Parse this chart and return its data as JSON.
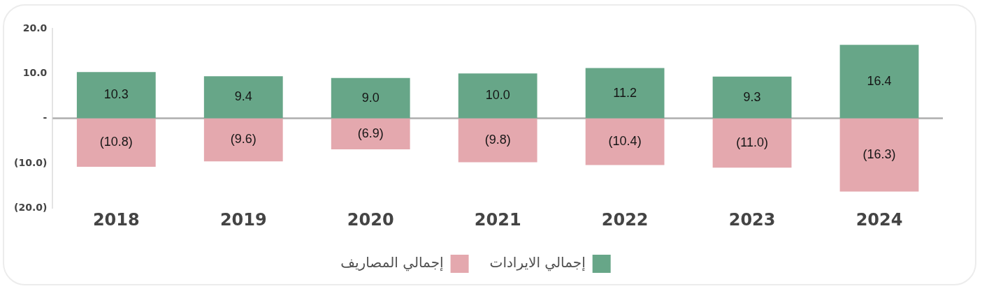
{
  "chart_data": {
    "type": "bar",
    "stacked": true,
    "categories": [
      "2018",
      "2019",
      "2020",
      "2021",
      "2022",
      "2023",
      "2024"
    ],
    "series": [
      {
        "name": "إجمالي الايرادات",
        "color": "#67a688",
        "values": [
          10.3,
          9.4,
          9.0,
          10.0,
          11.2,
          9.3,
          16.4
        ],
        "value_labels": [
          "10.3",
          "9.4",
          "9.0",
          "10.0",
          "11.2",
          "9.3",
          "16.4"
        ]
      },
      {
        "name": "إجمالي المصاريف",
        "color": "#e4a8ae",
        "values": [
          -10.8,
          -9.6,
          -6.9,
          -9.8,
          -10.4,
          -11.0,
          -16.3
        ],
        "value_labels": [
          "(10.8)",
          "(9.6)",
          "(6.9)",
          "(9.8)",
          "(10.4)",
          "(11.0)",
          "(16.3)"
        ]
      }
    ],
    "ylim": [
      -20,
      20
    ],
    "yticks": [
      {
        "value": 20,
        "label": "20.0"
      },
      {
        "value": 10,
        "label": "10.0"
      },
      {
        "value": 0,
        "label": "-"
      },
      {
        "value": -10,
        "label": "(10.0)"
      },
      {
        "value": -20,
        "label": "(20.0)"
      }
    ],
    "ref_lines": [
      {
        "axis": "y",
        "value": 0,
        "color": "#adadad"
      }
    ],
    "grid": false,
    "legend": "bottom"
  }
}
